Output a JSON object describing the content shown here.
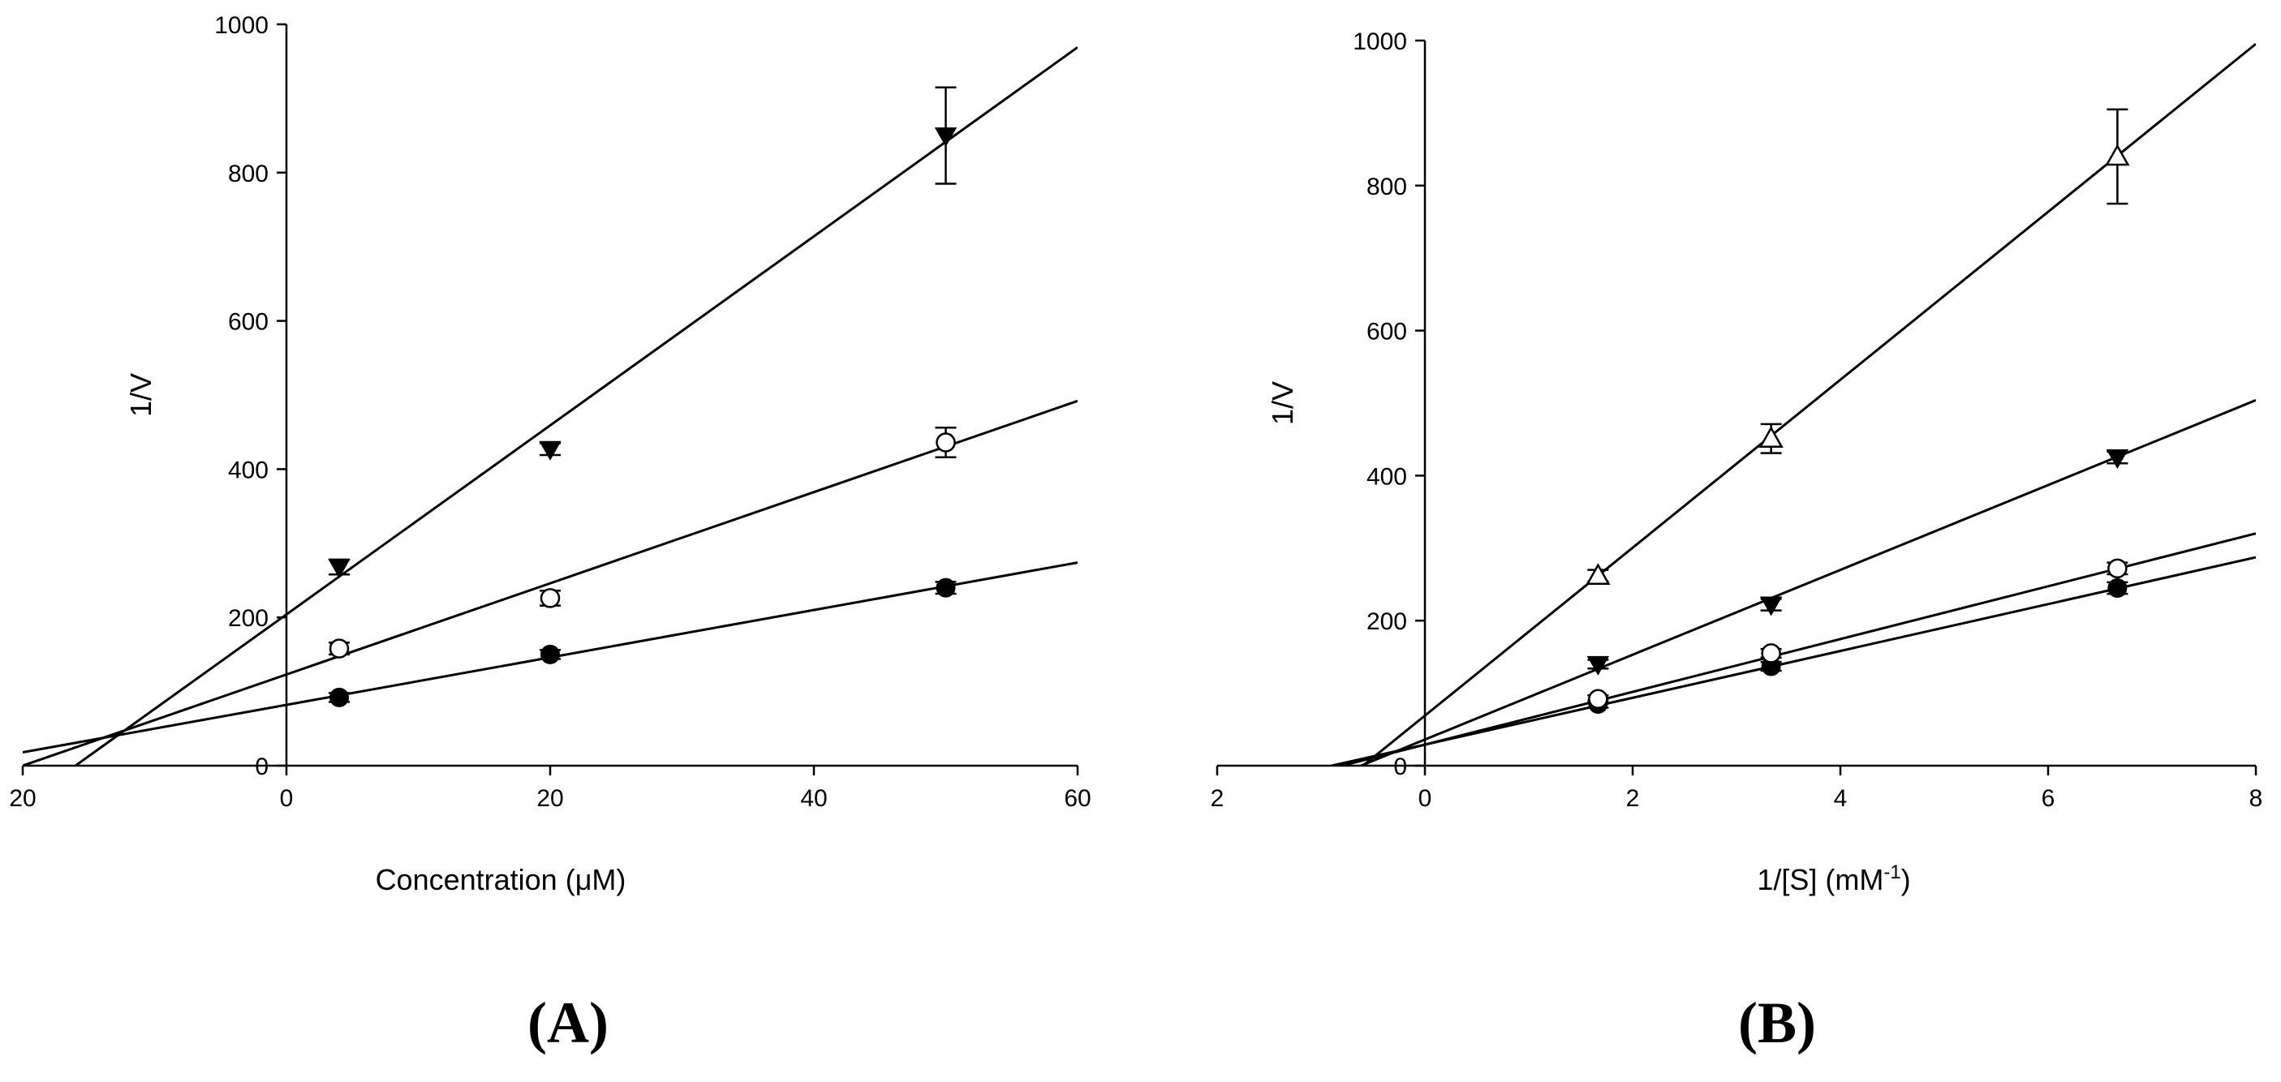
{
  "chart_data": [
    {
      "type": "scatter",
      "panel_label": "(A)",
      "xlabel": "Concentration (μM)",
      "ylabel": "1/V",
      "xlim": [
        -20,
        60
      ],
      "ylim": [
        0,
        1000
      ],
      "xticks": [
        "20",
        "0",
        "20",
        "40",
        "60"
      ],
      "xtick_values": [
        -20,
        0,
        20,
        40,
        60
      ],
      "yticks": [
        "0",
        "200",
        "400",
        "600",
        "800",
        "1000"
      ],
      "ytick_values": [
        0,
        200,
        400,
        600,
        800,
        1000
      ],
      "series": [
        {
          "name": "filled-circle",
          "marker": "filled-circle",
          "points": [
            {
              "x": 4,
              "y": 92,
              "err": 6
            },
            {
              "x": 20,
              "y": 150,
              "err": 6
            },
            {
              "x": 50,
              "y": 240,
              "err": 8
            }
          ],
          "fit": {
            "slope": 3.2,
            "intercept": 82
          }
        },
        {
          "name": "open-circle",
          "marker": "open-circle",
          "points": [
            {
              "x": 4,
              "y": 158,
              "err": 8
            },
            {
              "x": 20,
              "y": 226,
              "err": 10
            },
            {
              "x": 50,
              "y": 436,
              "err": 20
            }
          ],
          "fit": {
            "slope": 6.15,
            "intercept": 123
          }
        },
        {
          "name": "filled-triangle-down",
          "marker": "filled-triangle-down",
          "points": [
            {
              "x": 4,
              "y": 268,
              "err": 10
            },
            {
              "x": 20,
              "y": 427,
              "err": 8
            },
            {
              "x": 50,
              "y": 850,
              "err": 65
            }
          ],
          "fit": {
            "slope": 12.75,
            "intercept": 204
          }
        }
      ]
    },
    {
      "type": "scatter",
      "panel_label": "(B)",
      "xlabel": "1/[S] (mM",
      "xlabel_sup": "-1",
      "xlabel_end": ")",
      "ylabel": "1/V",
      "xlim": [
        -2,
        8
      ],
      "ylim": [
        0,
        1000
      ],
      "xticks": [
        "2",
        "0",
        "2",
        "4",
        "6",
        "8"
      ],
      "xtick_values": [
        -2,
        0,
        2,
        4,
        6,
        8
      ],
      "yticks": [
        "0",
        "200",
        "400",
        "600",
        "800",
        "1000"
      ],
      "ytick_values": [
        0,
        200,
        400,
        600,
        800,
        1000
      ],
      "series": [
        {
          "name": "filled-circle",
          "marker": "filled-circle",
          "points": [
            {
              "x": 1.667,
              "y": 85,
              "err": 5
            },
            {
              "x": 3.333,
              "y": 137,
              "err": 6
            },
            {
              "x": 6.667,
              "y": 245,
              "err": 8
            }
          ],
          "fit": {
            "slope": 32.3,
            "intercept": 29
          }
        },
        {
          "name": "open-circle",
          "marker": "open-circle",
          "points": [
            {
              "x": 1.667,
              "y": 92,
              "err": 5
            },
            {
              "x": 3.333,
              "y": 155,
              "err": 6
            },
            {
              "x": 6.667,
              "y": 272,
              "err": 8
            }
          ],
          "fit": {
            "slope": 36.4,
            "intercept": 29
          }
        },
        {
          "name": "filled-triangle-down",
          "marker": "filled-triangle-down",
          "points": [
            {
              "x": 1.667,
              "y": 140,
              "err": 6
            },
            {
              "x": 3.333,
              "y": 222,
              "err": 8
            },
            {
              "x": 6.667,
              "y": 425,
              "err": 8
            }
          ],
          "fit": {
            "slope": 58.5,
            "intercept": 36
          }
        },
        {
          "name": "open-triangle-up",
          "marker": "open-triangle-up",
          "points": [
            {
              "x": 1.667,
              "y": 262,
              "err": 8
            },
            {
              "x": 3.333,
              "y": 451,
              "err": 20
            },
            {
              "x": 6.667,
              "y": 840,
              "err": 65
            }
          ],
          "fit": {
            "slope": 115.8,
            "intercept": 69
          }
        }
      ]
    }
  ]
}
